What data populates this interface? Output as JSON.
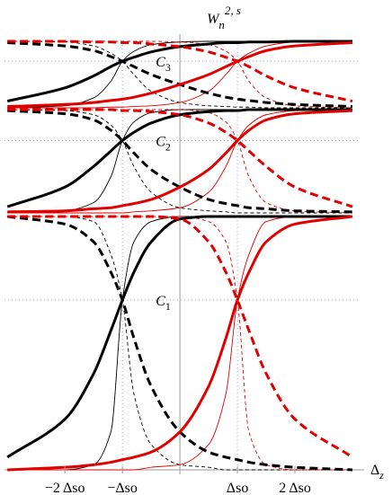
{
  "chart_data": [
    {
      "type": "line",
      "ylabel": "W",
      "ylabel_sub": "n",
      "ylabel_sup": "2, s",
      "annotation": "C",
      "annotation_sub": "3",
      "guide_y": 0.7,
      "guide_x": [
        -1,
        1
      ],
      "x": [
        -3,
        -2,
        -1.5,
        -1.2,
        -1,
        -0.8,
        -0.5,
        0,
        0.5,
        0.8,
        1,
        1.2,
        1.5,
        2,
        3
      ],
      "xlim": [
        -3.05,
        3.0
      ],
      "ylim": [
        0,
        1
      ],
      "series": [
        {
          "color": "#000000",
          "weight": "thick",
          "dash": false,
          "values": [
            0.1,
            0.3,
            0.48,
            0.62,
            0.7,
            0.76,
            0.84,
            0.92,
            0.96,
            0.98,
            0.98,
            0.99,
            0.99,
            1,
            1
          ]
        },
        {
          "color": "#000000",
          "weight": "thick",
          "dash": true,
          "values": [
            0.98,
            0.93,
            0.86,
            0.77,
            0.7,
            0.62,
            0.5,
            0.35,
            0.22,
            0.16,
            0.13,
            0.11,
            0.08,
            0.05,
            0.02
          ]
        },
        {
          "color": "#000000",
          "weight": "thin",
          "dash": false,
          "values": [
            0,
            0.03,
            0.15,
            0.4,
            0.7,
            0.85,
            0.95,
            0.99,
            1,
            1,
            1,
            1,
            1,
            1,
            1
          ]
        },
        {
          "color": "#000000",
          "weight": "thin",
          "dash": true,
          "values": [
            1,
            0.99,
            0.93,
            0.82,
            0.7,
            0.5,
            0.25,
            0.08,
            0.03,
            0.02,
            0.01,
            0.01,
            0,
            0,
            0
          ]
        },
        {
          "color": "#e00000",
          "weight": "thick",
          "dash": false,
          "values": [
            0.02,
            0.05,
            0.08,
            0.11,
            0.13,
            0.16,
            0.22,
            0.35,
            0.5,
            0.62,
            0.7,
            0.77,
            0.86,
            0.93,
            0.98
          ]
        },
        {
          "color": "#e00000",
          "weight": "thick",
          "dash": true,
          "values": [
            1,
            1,
            0.99,
            0.99,
            0.98,
            0.98,
            0.96,
            0.92,
            0.84,
            0.76,
            0.7,
            0.62,
            0.48,
            0.3,
            0.1
          ]
        },
        {
          "color": "#e00000",
          "weight": "thin",
          "dash": false,
          "values": [
            0,
            0,
            0,
            0.01,
            0.01,
            0.02,
            0.03,
            0.08,
            0.25,
            0.5,
            0.7,
            0.82,
            0.93,
            0.99,
            1
          ]
        },
        {
          "color": "#e00000",
          "weight": "thin",
          "dash": true,
          "values": [
            1,
            1,
            1,
            1,
            1,
            1,
            1,
            0.99,
            0.95,
            0.85,
            0.7,
            0.4,
            0.15,
            0.03,
            0
          ]
        }
      ]
    },
    {
      "type": "line",
      "annotation": "C",
      "annotation_sub": "2",
      "guide_y": 0.7,
      "guide_x": [
        -1,
        1
      ],
      "x": [
        -3,
        -2,
        -1.5,
        -1.2,
        -1,
        -0.8,
        -0.5,
        0,
        0.5,
        0.8,
        1,
        1.2,
        1.5,
        2,
        3
      ],
      "xlim": [
        -3.05,
        3.0
      ],
      "ylim": [
        0,
        1
      ],
      "series": [
        {
          "color": "#000000",
          "weight": "thick",
          "dash": false,
          "values": [
            0.06,
            0.25,
            0.45,
            0.6,
            0.7,
            0.78,
            0.87,
            0.95,
            0.98,
            0.99,
            0.99,
            1,
            1,
            1,
            1
          ]
        },
        {
          "color": "#000000",
          "weight": "thick",
          "dash": true,
          "values": [
            0.99,
            0.96,
            0.9,
            0.8,
            0.7,
            0.58,
            0.42,
            0.25,
            0.13,
            0.09,
            0.07,
            0.05,
            0.04,
            0.02,
            0.01
          ]
        },
        {
          "color": "#000000",
          "weight": "thin",
          "dash": false,
          "values": [
            0,
            0.02,
            0.1,
            0.35,
            0.7,
            0.88,
            0.97,
            1,
            1,
            1,
            1,
            1,
            1,
            1,
            1
          ]
        },
        {
          "color": "#000000",
          "weight": "thin",
          "dash": true,
          "values": [
            1,
            0.99,
            0.95,
            0.85,
            0.7,
            0.45,
            0.2,
            0.05,
            0.02,
            0.01,
            0,
            0,
            0,
            0,
            0
          ]
        },
        {
          "color": "#e00000",
          "weight": "thick",
          "dash": false,
          "values": [
            0.01,
            0.02,
            0.04,
            0.05,
            0.07,
            0.09,
            0.13,
            0.25,
            0.42,
            0.58,
            0.7,
            0.8,
            0.9,
            0.96,
            0.99
          ]
        },
        {
          "color": "#e00000",
          "weight": "thick",
          "dash": true,
          "values": [
            1,
            1,
            1,
            1,
            0.99,
            0.99,
            0.98,
            0.95,
            0.87,
            0.78,
            0.7,
            0.6,
            0.45,
            0.25,
            0.06
          ]
        },
        {
          "color": "#e00000",
          "weight": "thin",
          "dash": false,
          "values": [
            0,
            0,
            0,
            0,
            0,
            0.01,
            0.02,
            0.05,
            0.2,
            0.45,
            0.7,
            0.85,
            0.95,
            0.99,
            1
          ]
        },
        {
          "color": "#e00000",
          "weight": "thin",
          "dash": true,
          "values": [
            1,
            1,
            1,
            1,
            1,
            1,
            1,
            1,
            0.97,
            0.88,
            0.7,
            0.35,
            0.1,
            0.02,
            0
          ]
        }
      ]
    },
    {
      "type": "line",
      "annotation": "C",
      "annotation_sub": "1",
      "guide_y": 0.67,
      "guide_x": [
        -1,
        1
      ],
      "xlabel": "Δ",
      "xlabel_sub": "z",
      "x": [
        -3,
        -2,
        -1.5,
        -1.2,
        -1,
        -0.8,
        -0.5,
        0,
        0.5,
        0.8,
        1,
        1.2,
        1.5,
        2,
        3
      ],
      "xlim": [
        -3.05,
        3.0
      ],
      "ylim": [
        0,
        1
      ],
      "xticks": [
        {
          "value": -2,
          "label": "−2 Δso"
        },
        {
          "value": -1,
          "label": "−Δso"
        },
        {
          "value": 1,
          "label": "Δso"
        },
        {
          "value": 2,
          "label": "2 Δso"
        }
      ],
      "series": [
        {
          "color": "#000000",
          "weight": "thick",
          "dash": false,
          "values": [
            0.05,
            0.2,
            0.38,
            0.55,
            0.67,
            0.78,
            0.9,
            0.99,
            1,
            1,
            1,
            1,
            1,
            1,
            1
          ]
        },
        {
          "color": "#000000",
          "weight": "thick",
          "dash": true,
          "values": [
            1,
            0.97,
            0.9,
            0.78,
            0.67,
            0.52,
            0.33,
            0.15,
            0.07,
            0.05,
            0.04,
            0.03,
            0.02,
            0.01,
            0
          ]
        },
        {
          "color": "#000000",
          "weight": "thin",
          "dash": false,
          "values": [
            0,
            0,
            0.02,
            0.15,
            0.67,
            0.9,
            0.98,
            1,
            1,
            1,
            1,
            1,
            1,
            1,
            1
          ]
        },
        {
          "color": "#000000",
          "weight": "thin",
          "dash": true,
          "values": [
            1,
            1,
            0.98,
            0.85,
            0.67,
            0.3,
            0.1,
            0.02,
            0.01,
            0,
            0,
            0,
            0,
            0,
            0
          ]
        },
        {
          "color": "#e00000",
          "weight": "thick",
          "dash": false,
          "values": [
            0,
            0.01,
            0.02,
            0.03,
            0.04,
            0.05,
            0.07,
            0.15,
            0.33,
            0.52,
            0.67,
            0.78,
            0.9,
            0.97,
            1
          ]
        },
        {
          "color": "#e00000",
          "weight": "thick",
          "dash": true,
          "values": [
            1,
            1,
            1,
            1,
            1,
            1,
            1,
            0.99,
            0.9,
            0.78,
            0.67,
            0.55,
            0.38,
            0.2,
            0.05
          ]
        },
        {
          "color": "#e00000",
          "weight": "thin",
          "dash": false,
          "values": [
            0,
            0,
            0,
            0,
            0,
            0,
            0.01,
            0.02,
            0.1,
            0.3,
            0.67,
            0.85,
            0.98,
            1,
            1
          ]
        },
        {
          "color": "#e00000",
          "weight": "thin",
          "dash": true,
          "values": [
            1,
            1,
            1,
            1,
            1,
            1,
            1,
            1,
            0.98,
            0.9,
            0.67,
            0.15,
            0.02,
            0,
            0
          ]
        }
      ]
    }
  ]
}
